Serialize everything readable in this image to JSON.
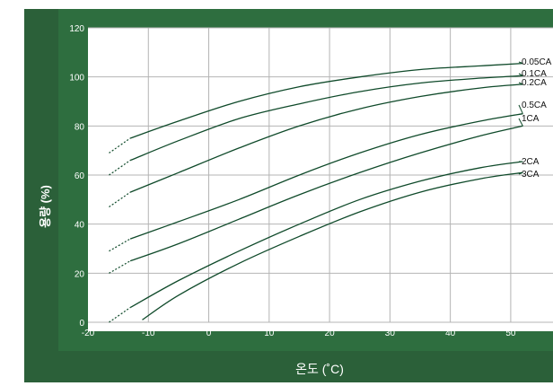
{
  "chart_data": {
    "type": "line",
    "xlabel": "온도 (˚C)",
    "ylabel": "용량 (%)",
    "xlim": [
      -20,
      57
    ],
    "ylim": [
      0,
      120
    ],
    "x_ticks": [
      "-20",
      "-10",
      "0",
      "10",
      "20",
      "30",
      "40",
      "50"
    ],
    "y_ticks": [
      "0",
      "20",
      "40",
      "60",
      "80",
      "100",
      "120"
    ],
    "grid": true,
    "line_color": "#0f4a2a",
    "frame_color": "#2e6e3f",
    "series": [
      {
        "name": "0.05CA",
        "dashed": [
          [
            -16.5,
            69
          ],
          [
            -13,
            75
          ]
        ],
        "solid": [
          [
            -13,
            75
          ],
          [
            -5,
            82
          ],
          [
            5,
            90
          ],
          [
            15,
            96
          ],
          [
            25,
            100
          ],
          [
            35,
            103
          ],
          [
            45,
            104.5
          ],
          [
            52,
            105.5
          ]
        ]
      },
      {
        "name": "0.1CA",
        "dashed": [
          [
            -16.5,
            60
          ],
          [
            -13,
            66
          ]
        ],
        "solid": [
          [
            -13,
            66
          ],
          [
            -5,
            74
          ],
          [
            5,
            83
          ],
          [
            15,
            89
          ],
          [
            25,
            94
          ],
          [
            35,
            97.5
          ],
          [
            45,
            99.5
          ],
          [
            52,
            100.5
          ]
        ]
      },
      {
        "name": "0.2CA",
        "dashed": [
          [
            -16.5,
            47
          ],
          [
            -13,
            53
          ]
        ],
        "solid": [
          [
            -13,
            53
          ],
          [
            -5,
            61
          ],
          [
            5,
            71
          ],
          [
            15,
            80
          ],
          [
            25,
            87
          ],
          [
            35,
            92
          ],
          [
            45,
            95.5
          ],
          [
            52,
            97
          ]
        ]
      },
      {
        "name": "0.5CA",
        "dashed": [
          [
            -16.5,
            29
          ],
          [
            -13,
            34
          ]
        ],
        "solid": [
          [
            -13,
            34
          ],
          [
            -5,
            41
          ],
          [
            5,
            50
          ],
          [
            15,
            60
          ],
          [
            25,
            69
          ],
          [
            35,
            76.5
          ],
          [
            45,
            82
          ],
          [
            52,
            85
          ]
        ]
      },
      {
        "name": "1CA",
        "dashed": [
          [
            -16.5,
            20
          ],
          [
            -13,
            25
          ]
        ],
        "solid": [
          [
            -13,
            25
          ],
          [
            -5,
            32
          ],
          [
            5,
            42
          ],
          [
            15,
            52
          ],
          [
            25,
            61
          ],
          [
            35,
            69
          ],
          [
            45,
            76
          ],
          [
            52,
            80
          ]
        ]
      },
      {
        "name": "2CA",
        "dashed": [
          [
            -16.5,
            0
          ],
          [
            -13,
            6
          ]
        ],
        "solid": [
          [
            -13,
            6
          ],
          [
            -5,
            17
          ],
          [
            5,
            29
          ],
          [
            15,
            40
          ],
          [
            25,
            50
          ],
          [
            35,
            57.5
          ],
          [
            45,
            63
          ],
          [
            52,
            65.5
          ]
        ]
      },
      {
        "name": "3CA",
        "dashed": [],
        "solid": [
          [
            -11,
            1
          ],
          [
            -5,
            11
          ],
          [
            5,
            24
          ],
          [
            15,
            35
          ],
          [
            25,
            45
          ],
          [
            35,
            53
          ],
          [
            45,
            58.5
          ],
          [
            52,
            61
          ]
        ]
      }
    ]
  }
}
